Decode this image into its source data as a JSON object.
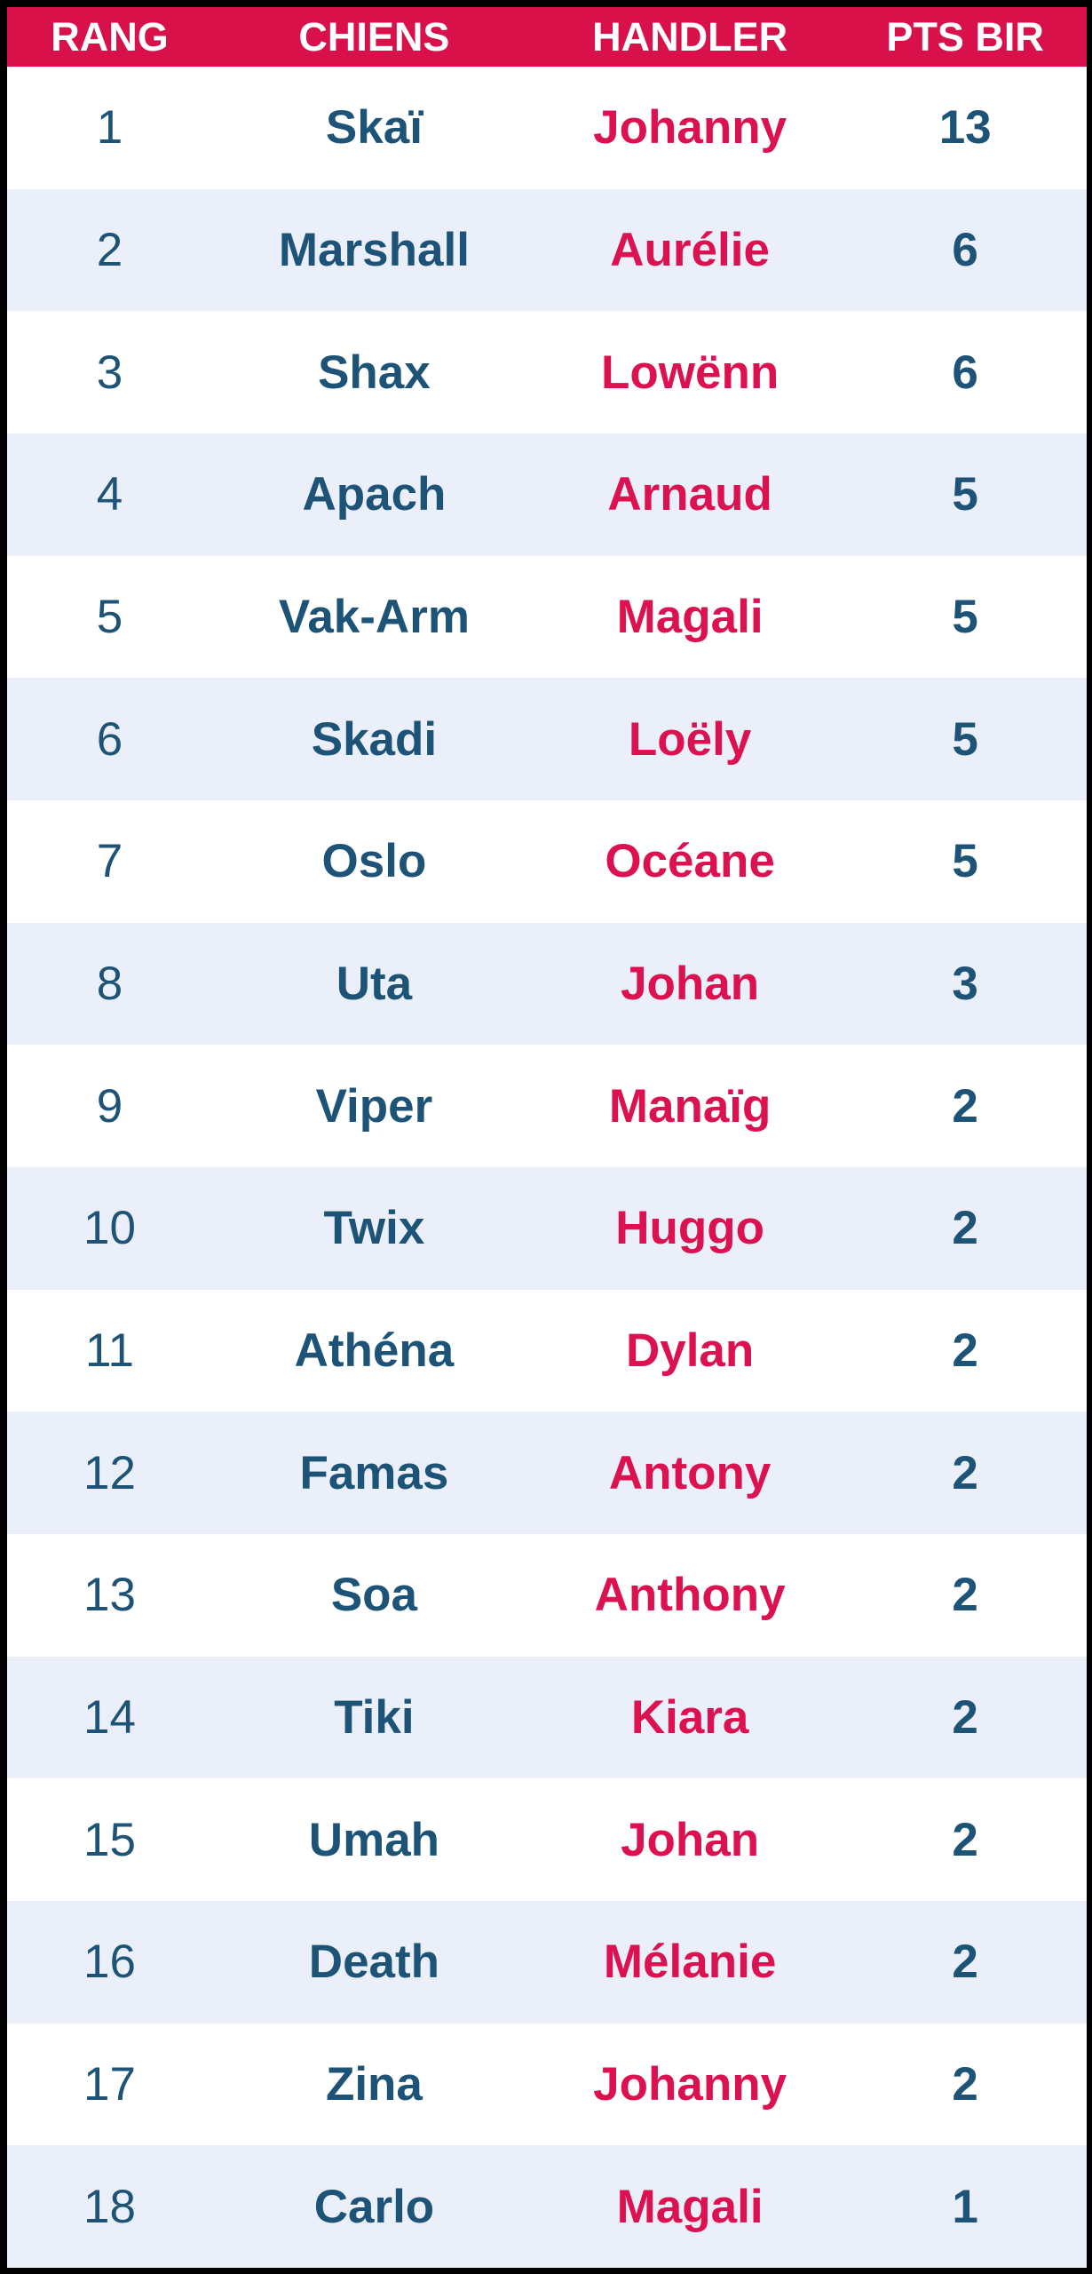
{
  "colors": {
    "frame": "#000000",
    "header_bg": "#d8114b",
    "header_text": "#ffffff",
    "row_bg_white": "#ffffff",
    "row_bg_alt": "#eaeff9",
    "name_blue": "#1d5377",
    "handler_pink": "#db1150"
  },
  "table": {
    "columns": [
      "RANG",
      "CHIENS",
      "HANDLER",
      "PTS BIR"
    ],
    "rows": [
      {
        "rank": "1",
        "dog": "Skaï",
        "handler": "Johanny",
        "points": "13"
      },
      {
        "rank": "2",
        "dog": "Marshall",
        "handler": "Aurélie",
        "points": "6"
      },
      {
        "rank": "3",
        "dog": "Shax",
        "handler": "Lowënn",
        "points": "6"
      },
      {
        "rank": "4",
        "dog": "Apach",
        "handler": "Arnaud",
        "points": "5"
      },
      {
        "rank": "5",
        "dog": "Vak-Arm",
        "handler": "Magali",
        "points": "5"
      },
      {
        "rank": "6",
        "dog": "Skadi",
        "handler": "Loëly",
        "points": "5"
      },
      {
        "rank": "7",
        "dog": "Oslo",
        "handler": "Océane",
        "points": "5"
      },
      {
        "rank": "8",
        "dog": "Uta",
        "handler": "Johan",
        "points": "3"
      },
      {
        "rank": "9",
        "dog": "Viper",
        "handler": "Manaïg",
        "points": "2"
      },
      {
        "rank": "10",
        "dog": "Twix",
        "handler": "Huggo",
        "points": "2"
      },
      {
        "rank": "11",
        "dog": "Athéna",
        "handler": "Dylan",
        "points": "2"
      },
      {
        "rank": "12",
        "dog": "Famas",
        "handler": "Antony",
        "points": "2"
      },
      {
        "rank": "13",
        "dog": "Soa",
        "handler": "Anthony",
        "points": "2"
      },
      {
        "rank": "14",
        "dog": "Tiki",
        "handler": "Kiara",
        "points": "2"
      },
      {
        "rank": "15",
        "dog": "Umah",
        "handler": "Johan",
        "points": "2"
      },
      {
        "rank": "16",
        "dog": "Death",
        "handler": "Mélanie",
        "points": "2"
      },
      {
        "rank": "17",
        "dog": "Zina",
        "handler": "Johanny",
        "points": "2"
      },
      {
        "rank": "18",
        "dog": "Carlo",
        "handler": "Magali",
        "points": "1"
      }
    ]
  }
}
